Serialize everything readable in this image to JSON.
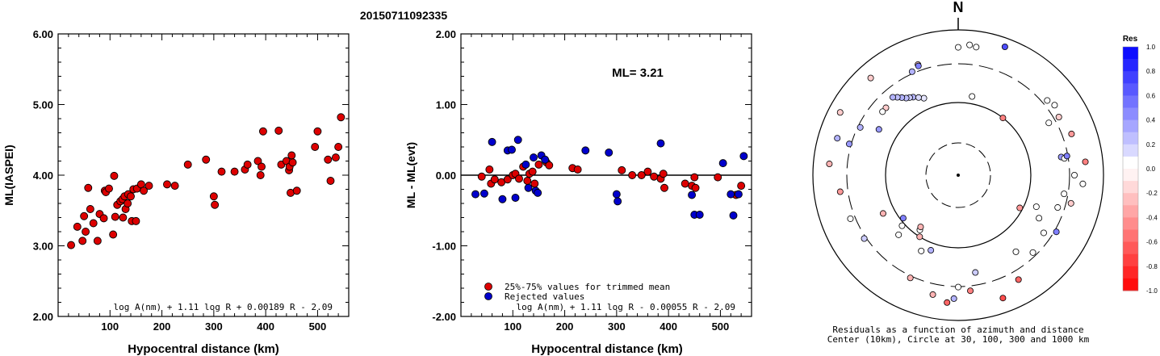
{
  "page_title": "20150711092335",
  "chart_data": [
    {
      "type": "scatter",
      "ylabel": "ML(IASPEI)",
      "xlabel": "Hypocentral distance (km)",
      "xlim": [
        0,
        560
      ],
      "ylim": [
        2.0,
        6.0
      ],
      "xticks": [
        "100",
        "200",
        "300",
        "400",
        "500"
      ],
      "yticks": [
        "2.00",
        "3.00",
        "4.00",
        "5.00",
        "6.00"
      ],
      "formula": "log A(nm) + 1.11 log R + 0.00189 R - 2.09",
      "point_color": "#dd0000",
      "points": [
        [
          25,
          3.01
        ],
        [
          37,
          3.27
        ],
        [
          47,
          3.07
        ],
        [
          50,
          3.42
        ],
        [
          53,
          3.2
        ],
        [
          58,
          3.82
        ],
        [
          62,
          3.52
        ],
        [
          68,
          3.32
        ],
        [
          76,
          3.07
        ],
        [
          80,
          3.45
        ],
        [
          88,
          3.39
        ],
        [
          90,
          3.78
        ],
        [
          92,
          3.76
        ],
        [
          98,
          3.81
        ],
        [
          106,
          3.16
        ],
        [
          108,
          3.99
        ],
        [
          110,
          3.41
        ],
        [
          114,
          3.58
        ],
        [
          120,
          3.63
        ],
        [
          124,
          3.66
        ],
        [
          125,
          3.4
        ],
        [
          128,
          3.7
        ],
        [
          130,
          3.52
        ],
        [
          134,
          3.6
        ],
        [
          135,
          3.73
        ],
        [
          140,
          3.7
        ],
        [
          142,
          3.35
        ],
        [
          145,
          3.8
        ],
        [
          150,
          3.35
        ],
        [
          152,
          3.81
        ],
        [
          160,
          3.87
        ],
        [
          165,
          3.78
        ],
        [
          175,
          3.85
        ],
        [
          210,
          3.87
        ],
        [
          225,
          3.85
        ],
        [
          250,
          4.15
        ],
        [
          285,
          4.22
        ],
        [
          300,
          3.7
        ],
        [
          302,
          3.58
        ],
        [
          315,
          4.05
        ],
        [
          340,
          4.05
        ],
        [
          360,
          4.08
        ],
        [
          365,
          4.15
        ],
        [
          385,
          4.2
        ],
        [
          390,
          4.0
        ],
        [
          392,
          4.12
        ],
        [
          395,
          4.62
        ],
        [
          425,
          4.63
        ],
        [
          430,
          4.15
        ],
        [
          440,
          4.2
        ],
        [
          445,
          4.07
        ],
        [
          446,
          4.12
        ],
        [
          448,
          3.75
        ],
        [
          450,
          4.28
        ],
        [
          452,
          4.18
        ],
        [
          460,
          3.78
        ],
        [
          495,
          4.4
        ],
        [
          500,
          4.62
        ],
        [
          520,
          4.22
        ],
        [
          525,
          3.92
        ],
        [
          535,
          4.25
        ],
        [
          540,
          4.4
        ],
        [
          545,
          4.82
        ]
      ]
    },
    {
      "type": "scatter",
      "ylabel": "ML - ML(evt)",
      "xlabel": "Hypocentral distance (km)",
      "xlim": [
        0,
        560
      ],
      "ylim": [
        -2.0,
        2.0
      ],
      "xticks": [
        "100",
        "200",
        "300",
        "400",
        "500"
      ],
      "yticks": [
        "-2.00",
        "-1.00",
        "0.00",
        "1.00",
        "2.00"
      ],
      "annotation": "ML= 3.21",
      "formula": "log A(nm) + 1.11 log R - 0.00055 R - 2.09",
      "legend": [
        {
          "label": "25%-75% values for trimmed mean",
          "color": "#dd0000"
        },
        {
          "label": "Rejected values",
          "color": "#0000cc"
        }
      ],
      "series": [
        {
          "name": "25%-75% values for trimmed mean",
          "color": "#dd0000",
          "points": [
            [
              40,
              -0.02
            ],
            [
              55,
              0.08
            ],
            [
              58,
              -0.12
            ],
            [
              65,
              -0.06
            ],
            [
              78,
              -0.1
            ],
            [
              90,
              -0.06
            ],
            [
              100,
              0.0
            ],
            [
              105,
              0.02
            ],
            [
              112,
              -0.05
            ],
            [
              120,
              0.12
            ],
            [
              128,
              -0.08
            ],
            [
              132,
              0.02
            ],
            [
              138,
              0.05
            ],
            [
              142,
              -0.12
            ],
            [
              150,
              0.15
            ],
            [
              165,
              0.18
            ],
            [
              170,
              0.14
            ],
            [
              215,
              0.1
            ],
            [
              225,
              0.08
            ],
            [
              310,
              0.07
            ],
            [
              330,
              0.0
            ],
            [
              348,
              0.0
            ],
            [
              360,
              0.05
            ],
            [
              372,
              -0.02
            ],
            [
              385,
              -0.05
            ],
            [
              390,
              0.02
            ],
            [
              392,
              -0.18
            ],
            [
              432,
              -0.12
            ],
            [
              445,
              -0.15
            ],
            [
              450,
              -0.03
            ],
            [
              452,
              -0.18
            ],
            [
              495,
              -0.03
            ],
            [
              530,
              -0.28
            ],
            [
              540,
              -0.15
            ]
          ]
        },
        {
          "name": "Rejected values",
          "color": "#0000cc",
          "points": [
            [
              28,
              -0.27
            ],
            [
              45,
              -0.26
            ],
            [
              60,
              0.47
            ],
            [
              80,
              -0.34
            ],
            [
              90,
              0.35
            ],
            [
              98,
              0.36
            ],
            [
              105,
              -0.32
            ],
            [
              110,
              0.5
            ],
            [
              125,
              0.15
            ],
            [
              130,
              -0.18
            ],
            [
              140,
              0.25
            ],
            [
              144,
              -0.22
            ],
            [
              148,
              -0.25
            ],
            [
              155,
              0.28
            ],
            [
              162,
              0.22
            ],
            [
              240,
              0.35
            ],
            [
              285,
              0.32
            ],
            [
              300,
              -0.27
            ],
            [
              302,
              -0.37
            ],
            [
              385,
              0.45
            ],
            [
              445,
              -0.28
            ],
            [
              450,
              -0.56
            ],
            [
              460,
              -0.56
            ],
            [
              505,
              0.17
            ],
            [
              520,
              -0.27
            ],
            [
              525,
              -0.57
            ],
            [
              535,
              -0.27
            ],
            [
              545,
              0.27
            ]
          ]
        }
      ]
    },
    {
      "type": "polar",
      "north_label": "N",
      "caption_line1": "Residuals as a function of azimuth and distance",
      "caption_line2": "Center (10km), Circle at 30, 100, 300 and 1000 km",
      "colorbar_title": "Res",
      "colorbar_ticks": [
        "1.0",
        "0.8",
        "0.6",
        "0.4",
        "0.2",
        "0.0",
        "-0.2",
        "-0.4",
        "-0.6",
        "-0.8",
        "-1.0"
      ],
      "colorbar_range": [
        -1.0,
        1.0
      ],
      "rings_km": [
        30,
        100,
        300,
        1000
      ],
      "points": [
        {
          "az": 10,
          "r": 0.55,
          "res": 0.0
        },
        {
          "az": 5,
          "r": 0.9,
          "res": 0.0
        },
        {
          "az": 8,
          "r": 0.89,
          "res": 0.0
        },
        {
          "az": 0,
          "r": 0.88,
          "res": 0.0
        },
        {
          "az": 20,
          "r": 0.94,
          "res": 0.7
        },
        {
          "az": 340,
          "r": 0.81,
          "res": -0.2
        },
        {
          "az": 318,
          "r": 0.9,
          "res": -0.2
        },
        {
          "az": 330,
          "r": 0.62,
          "res": 0.3
        },
        {
          "az": 328,
          "r": 0.63,
          "res": 0.2
        },
        {
          "az": 326,
          "r": 0.64,
          "res": 0.25
        },
        {
          "az": 324,
          "r": 0.66,
          "res": 0.3
        },
        {
          "az": 322,
          "r": 0.68,
          "res": 0.25
        },
        {
          "az": 336,
          "r": 0.58,
          "res": 0.1
        },
        {
          "az": 333,
          "r": 0.6,
          "res": 0.15
        },
        {
          "az": 320,
          "r": 0.7,
          "res": 0.3
        },
        {
          "az": 313,
          "r": 0.68,
          "res": -0.2
        },
        {
          "az": 310,
          "r": 0.68,
          "res": 0.0
        },
        {
          "az": 300,
          "r": 0.63,
          "res": 0.4
        },
        {
          "az": 296,
          "r": 0.75,
          "res": 0.3
        },
        {
          "az": 286,
          "r": 0.78,
          "res": 0.4
        },
        {
          "az": 340,
          "r": 0.8,
          "res": 0.5
        },
        {
          "az": 336,
          "r": 0.78,
          "res": 0.3
        },
        {
          "az": 38,
          "r": 0.5,
          "res": -0.5
        },
        {
          "az": 50,
          "r": 0.8,
          "res": 0.0
        },
        {
          "az": 60,
          "r": 0.8,
          "res": -0.2
        },
        {
          "az": 54,
          "r": 0.82,
          "res": 0.0
        },
        {
          "az": 70,
          "r": 0.83,
          "res": -0.4
        },
        {
          "az": 80,
          "r": 0.72,
          "res": 0.4
        },
        {
          "az": 81,
          "r": 0.74,
          "res": 0.0
        },
        {
          "az": 80,
          "r": 0.76,
          "res": 0.5
        },
        {
          "az": 84,
          "r": 0.88,
          "res": -0.5
        },
        {
          "az": 90,
          "r": 0.8,
          "res": 0.0
        },
        {
          "az": 100,
          "r": 0.74,
          "res": 0.0
        },
        {
          "az": 104,
          "r": 0.8,
          "res": -0.2
        },
        {
          "az": 108,
          "r": 0.72,
          "res": 0.0
        },
        {
          "az": 120,
          "r": 0.78,
          "res": 0.5
        },
        {
          "az": 124,
          "r": 0.71,
          "res": 0.0
        },
        {
          "az": 118,
          "r": 0.63,
          "res": 0.0
        },
        {
          "az": 112,
          "r": 0.58,
          "res": 0.0
        },
        {
          "az": 118,
          "r": 0.48,
          "res": -0.4
        },
        {
          "az": 143,
          "r": 0.66,
          "res": 0.0
        },
        {
          "az": 136,
          "r": 0.74,
          "res": 0.0
        },
        {
          "az": 150,
          "r": 0.83,
          "res": -0.6
        },
        {
          "az": 160,
          "r": 0.9,
          "res": -0.7
        },
        {
          "az": 170,
          "r": 0.68,
          "res": 0.2
        },
        {
          "az": 174,
          "r": 0.8,
          "res": -0.5
        },
        {
          "az": 180,
          "r": 0.77,
          "res": 0.0
        },
        {
          "az": 182,
          "r": 0.85,
          "res": 0.3
        },
        {
          "az": 185,
          "r": 0.88,
          "res": -0.6
        },
        {
          "az": 192,
          "r": 0.84,
          "res": -0.3
        },
        {
          "az": 205,
          "r": 0.78,
          "res": -0.3
        },
        {
          "az": 200,
          "r": 0.55,
          "res": 0.3
        },
        {
          "az": 206,
          "r": 0.58,
          "res": 0.0
        },
        {
          "az": 212,
          "r": 0.5,
          "res": -0.3
        },
        {
          "az": 215,
          "r": 0.46,
          "res": 0.0
        },
        {
          "az": 216,
          "r": 0.44,
          "res": -0.3
        },
        {
          "az": 225,
          "r": 0.58,
          "res": 0.0
        },
        {
          "az": 228,
          "r": 0.52,
          "res": 0.0
        },
        {
          "az": 232,
          "r": 0.48,
          "res": 0.5
        },
        {
          "az": 236,
          "r": 0.78,
          "res": 0.2
        },
        {
          "az": 248,
          "r": 0.8,
          "res": 0.0
        },
        {
          "az": 262,
          "r": 0.82,
          "res": -0.4
        },
        {
          "az": 243,
          "r": 0.58,
          "res": -0.3
        },
        {
          "az": 275,
          "r": 0.89,
          "res": -0.3
        },
        {
          "az": 287,
          "r": 0.87,
          "res": 0.3
        },
        {
          "az": 298,
          "r": 0.92,
          "res": -0.2
        },
        {
          "az": 60,
          "r": 0.72,
          "res": 0.0
        },
        {
          "az": 94,
          "r": 0.86,
          "res": 0.0
        }
      ]
    }
  ]
}
